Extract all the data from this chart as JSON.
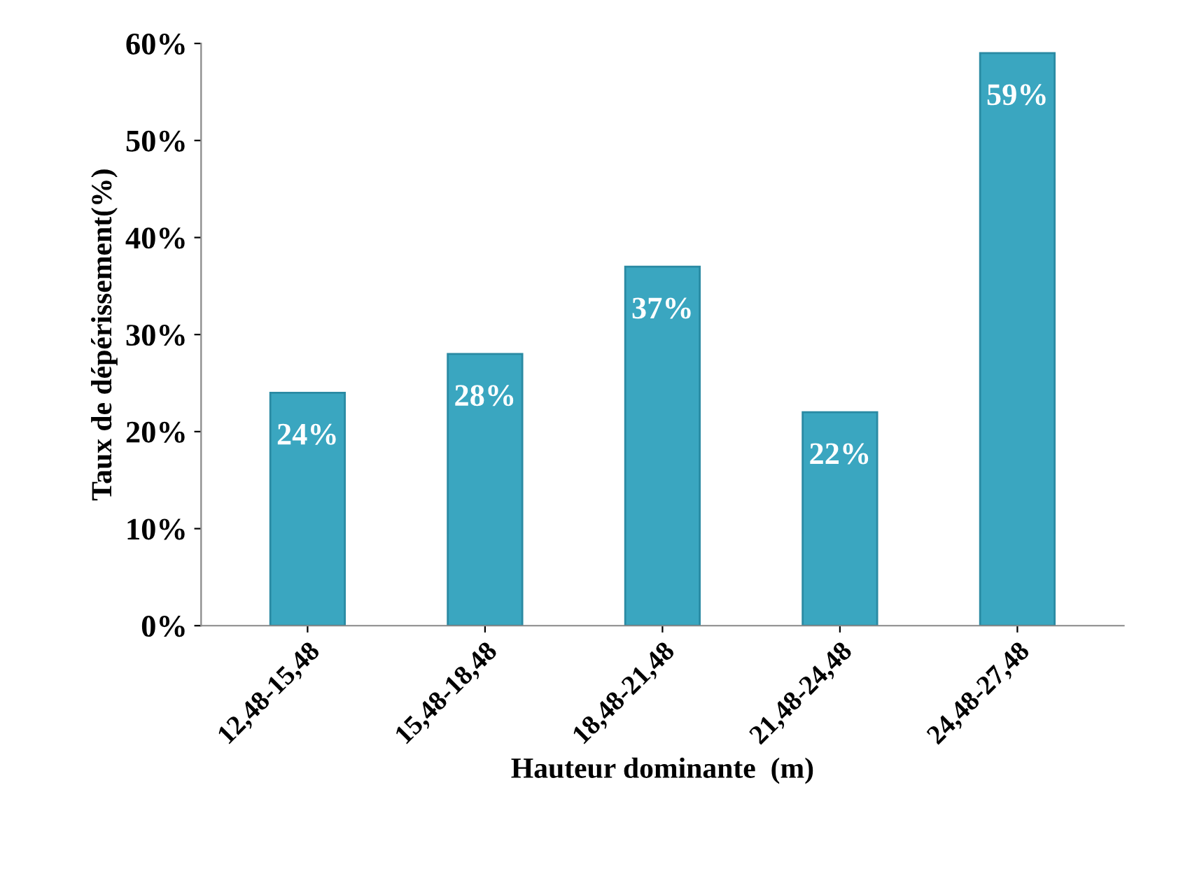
{
  "chart_data": {
    "type": "bar",
    "xlabel": "Hauteur dominante  (m)",
    "ylabel": "Taux de dépérissement(%)",
    "categories": [
      "12,48-15,48",
      "15,48-18,48",
      "18,48-21,48",
      "21,48-24,48",
      "24,48-27,48"
    ],
    "values": [
      24,
      28,
      37,
      22,
      59
    ],
    "color": "#3aa6c0",
    "value_labels": [
      "24%",
      "28%",
      "37%",
      "22%",
      "59%"
    ],
    "ylim": [
      0,
      60
    ],
    "yticks": [
      {
        "value": 0,
        "label": "0%"
      },
      {
        "value": 10,
        "label": "10%"
      },
      {
        "value": 20,
        "label": "20%"
      },
      {
        "value": 30,
        "label": "30%"
      },
      {
        "value": 40,
        "label": "40%"
      },
      {
        "value": 50,
        "label": "50%"
      },
      {
        "value": 60,
        "label": "60%"
      }
    ],
    "grid": false,
    "legend": false
  }
}
